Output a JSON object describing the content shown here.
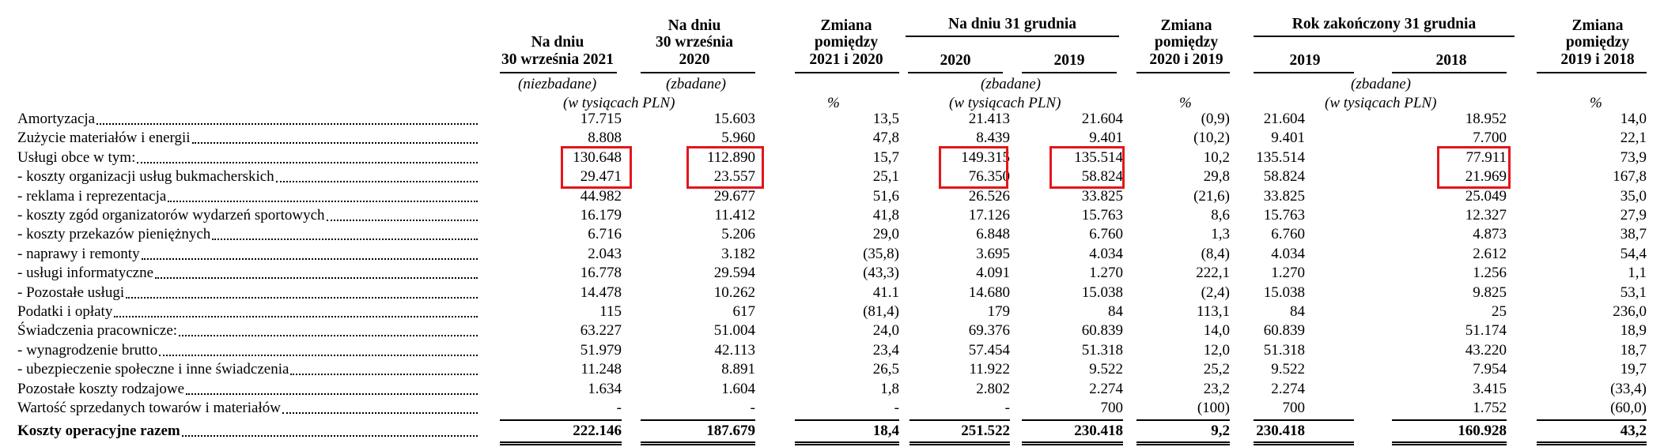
{
  "headers": {
    "col_2021": [
      "Na dniu",
      "30 września 2021"
    ],
    "col_2020": [
      "Na dniu",
      "30 września",
      "2020"
    ],
    "col_change_21_20": [
      "Zmiana",
      "pomiędzy",
      "2021 i 2020"
    ],
    "group_31dec": "Na dniu 31 grudnia",
    "col_dec_2020": "2020",
    "col_dec_2019": "2019",
    "col_change_20_19": [
      "Zmiana",
      "pomiędzy",
      "2020 i 2019"
    ],
    "group_year": "Rok zakończony 31 grudnia",
    "col_year_2019": "2019",
    "col_year_2018": "2018",
    "col_change_19_18": [
      "Zmiana",
      "pomiędzy",
      "2019 i 2018"
    ]
  },
  "subheaders": {
    "unaudited": "(niezbadane)",
    "audited_1": "(zbadane)",
    "audited_2": "(zbadane)",
    "audited_3": "(zbadane)",
    "thousands_1": "(w tysiącach PLN)",
    "thousands_2": "(w tysiącach PLN)",
    "thousands_3": "(w tysiącach PLN)",
    "pct_1": "%",
    "pct_2": "%",
    "pct_3": "%"
  },
  "rows": [
    {
      "label": "Amortyzacja",
      "v": [
        "17.715",
        "15.603",
        "13,5",
        "21.413",
        "21.604",
        "(0,9)",
        "21.604",
        "18.952",
        "14,0"
      ]
    },
    {
      "label": "Zużycie materiałów i energii",
      "v": [
        "8.808",
        "5.960",
        "47,8",
        "8.439",
        "9.401",
        "(10,2)",
        "9.401",
        "7.700",
        "22,1"
      ]
    },
    {
      "label": "Usługi obce w tym:",
      "v": [
        "130.648",
        "112.890",
        "15,7",
        "149.315",
        "135.514",
        "10,2",
        "135.514",
        "77.911",
        "73,9"
      ]
    },
    {
      "label": "- koszty organizacji usług bukmacherskich",
      "v": [
        "29.471",
        "23.557",
        "25,1",
        "76.350",
        "58.824",
        "29,8",
        "58.824",
        "21.969",
        "167,8"
      ]
    },
    {
      "label": "- reklama i reprezentacja",
      "v": [
        "44.982",
        "29.677",
        "51,6",
        "26.526",
        "33.825",
        "(21,6)",
        "33.825",
        "25.049",
        "35,0"
      ]
    },
    {
      "label": "- koszty zgód organizatorów wydarzeń sportowych",
      "v": [
        "16.179",
        "11.412",
        "41,8",
        "17.126",
        "15.763",
        "8,6",
        "15.763",
        "12.327",
        "27,9"
      ]
    },
    {
      "label": "- koszty przekazów pieniężnych",
      "v": [
        "6.716",
        "5.206",
        "29,0",
        "6.848",
        "6.760",
        "1,3",
        "6.760",
        "4.873",
        "38,7"
      ]
    },
    {
      "label": "- naprawy i remonty",
      "v": [
        "2.043",
        "3.182",
        "(35,8)",
        "3.695",
        "4.034",
        "(8,4)",
        "4.034",
        "2.612",
        "54,4"
      ]
    },
    {
      "label": "- usługi informatyczne",
      "v": [
        "16.778",
        "29.594",
        "(43,3)",
        "4.091",
        "1.270",
        "222,1",
        "1.270",
        "1.256",
        "1,1"
      ]
    },
    {
      "label": "- Pozostałe usługi",
      "v": [
        "14.478",
        "10.262",
        "41.1",
        "14.680",
        "15.038",
        "(2,4)",
        "15.038",
        "9.825",
        "53,1"
      ]
    },
    {
      "label": "Podatki i opłaty",
      "v": [
        "115",
        "617",
        "(81,4)",
        "179",
        "84",
        "113,1",
        "84",
        "25",
        "236,0"
      ]
    },
    {
      "label": "Świadczenia pracownicze:",
      "v": [
        "63.227",
        "51.004",
        "24,0",
        "69.376",
        "60.839",
        "14,0",
        "60.839",
        "51.174",
        "18,9"
      ]
    },
    {
      "label": "- wynagrodzenie brutto",
      "v": [
        "51.979",
        "42.113",
        "23,4",
        "57.454",
        "51.318",
        "12,0",
        "51.318",
        "43.220",
        "18,7"
      ]
    },
    {
      "label": "- ubezpieczenie społeczne i inne świadczenia",
      "v": [
        "11.248",
        "8.891",
        "26,5",
        "11.922",
        "9.522",
        "25,2",
        "9.522",
        "7.954",
        "19,7"
      ]
    },
    {
      "label": "Pozostałe koszty rodzajowe",
      "v": [
        "1.634",
        "1.604",
        "1,8",
        "2.802",
        "2.274",
        "23,2",
        "2.274",
        "3.415",
        "(33,4)"
      ]
    },
    {
      "label": "Wartość sprzedanych towarów i materiałów",
      "v": [
        "-",
        "-",
        "-",
        "-",
        "700",
        "(100)",
        "700",
        "1.752",
        "(60,0)"
      ]
    }
  ],
  "total": {
    "label": "Koszty operacyjne razem",
    "v": [
      "222.146",
      "187.679",
      "18,4",
      "251.522",
      "230.418",
      "9,2",
      "230.418",
      "160.928",
      "43,2"
    ]
  },
  "colors": {
    "highlight": "#e3161b",
    "text": "#000000"
  }
}
